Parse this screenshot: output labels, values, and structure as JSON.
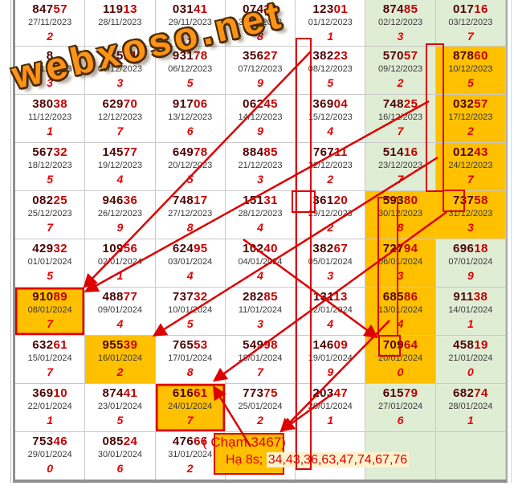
{
  "watermark": {
    "text": "webxoso.net"
  },
  "annotation": {
    "cham": "( Chạm 3467)",
    "ha_label": "Hạ 8s; ",
    "ha_numbers": "34,43,36,63,47,74,67,76"
  },
  "colors": {
    "highlight_orange": "#ffc000",
    "highlight_green": "#e0edd5",
    "annotation_red": "#dd0000",
    "number_dark": "#4d0505",
    "number_tail_red": "#c40000",
    "digit_red": "#e60000"
  },
  "table": {
    "columns": 7,
    "rows": [
      [
        {
          "n": "84757",
          "d": "27/11/2023",
          "g": "2",
          "bg": "w"
        },
        {
          "n": "11913",
          "d": "28/11/2023",
          "g": "",
          "bg": "w"
        },
        {
          "n": "03141",
          "d": "29/11/2023",
          "g": "5",
          "bg": "w"
        },
        {
          "n": "07426",
          "d": "30/11/2023",
          "g": "8",
          "bg": "w"
        },
        {
          "n": "12301",
          "d": "01/12/2023",
          "g": "1",
          "bg": "w"
        },
        {
          "n": "87485",
          "d": "02/12/2023",
          "g": "3",
          "bg": "g"
        },
        {
          "n": "01716",
          "d": "03/12/2023",
          "g": "7",
          "bg": "g"
        }
      ],
      [
        {
          "n": "8",
          "d": "04/12/2023",
          "g": "3",
          "bg": "w"
        },
        {
          "n": "47521",
          "d": "05/12/2023",
          "g": "3",
          "bg": "w"
        },
        {
          "n": "93178",
          "d": "06/12/2023",
          "g": "5",
          "bg": "w"
        },
        {
          "n": "35627",
          "d": "07/12/2023",
          "g": "9",
          "bg": "w"
        },
        {
          "n": "38223",
          "d": "08/12/2023",
          "g": "5",
          "bg": "w"
        },
        {
          "n": "57057",
          "d": "09/12/2023",
          "g": "2",
          "bg": "g"
        },
        {
          "n": "87860",
          "d": "10/12/2023",
          "g": "5",
          "bg": "o"
        }
      ],
      [
        {
          "n": "38038",
          "d": "11/12/2023",
          "g": "1",
          "bg": "w"
        },
        {
          "n": "62970",
          "d": "12/12/2023",
          "g": "7",
          "bg": "w"
        },
        {
          "n": "91706",
          "d": "13/12/2023",
          "g": "6",
          "bg": "w"
        },
        {
          "n": "06245",
          "d": "14/12/2023",
          "g": "9",
          "bg": "w"
        },
        {
          "n": "36904",
          "d": "15/12/2023",
          "g": "4",
          "bg": "w"
        },
        {
          "n": "74825",
          "d": "16/12/2023",
          "g": "7",
          "bg": "g"
        },
        {
          "n": "03257",
          "d": "17/12/2023",
          "g": "2",
          "bg": "o"
        }
      ],
      [
        {
          "n": "56732",
          "d": "18/12/2023",
          "g": "5",
          "bg": "w"
        },
        {
          "n": "14577",
          "d": "19/12/2023",
          "g": "4",
          "bg": "w"
        },
        {
          "n": "64978",
          "d": "20/12/2023",
          "g": "5",
          "bg": "w"
        },
        {
          "n": "88485",
          "d": "21/12/2023",
          "g": "3",
          "bg": "w"
        },
        {
          "n": "76711",
          "d": "22/12/2023",
          "g": "2",
          "bg": "w"
        },
        {
          "n": "51416",
          "d": "23/12/2023",
          "g": "7",
          "bg": "g"
        },
        {
          "n": "01243",
          "d": "24/12/2023",
          "g": "7",
          "bg": "o"
        }
      ],
      [
        {
          "n": "08225",
          "d": "25/12/2023",
          "g": "7",
          "bg": "w"
        },
        {
          "n": "94636",
          "d": "26/12/2023",
          "g": "9",
          "bg": "w"
        },
        {
          "n": "74817",
          "d": "27/12/2023",
          "g": "8",
          "bg": "w"
        },
        {
          "n": "15131",
          "d": "28/12/2023",
          "g": "4",
          "bg": "w"
        },
        {
          "n": "36120",
          "d": "29/12/2023",
          "g": "2",
          "bg": "w"
        },
        {
          "n": "59380",
          "d": "30/12/2023",
          "g": "8",
          "bg": "o"
        },
        {
          "n": "73758",
          "d": "31/12/2023",
          "g": "3",
          "bg": "o"
        }
      ],
      [
        {
          "n": "42932",
          "d": "01/01/2024",
          "g": "5",
          "bg": "w"
        },
        {
          "n": "10956",
          "d": "02/01/2024",
          "g": "1",
          "bg": "w"
        },
        {
          "n": "62495",
          "d": "03/01/2024",
          "g": "4",
          "bg": "w"
        },
        {
          "n": "10240",
          "d": "04/01/2024",
          "g": "4",
          "bg": "w"
        },
        {
          "n": "38267",
          "d": "05/01/2024",
          "g": "3",
          "bg": "w"
        },
        {
          "n": "72794",
          "d": "06/01/2024",
          "g": "3",
          "bg": "o"
        },
        {
          "n": "69618",
          "d": "07/01/2024",
          "g": "9",
          "bg": "g"
        }
      ],
      [
        {
          "n": "91089",
          "d": "08/01/2024",
          "g": "7",
          "bg": "o",
          "rb": true
        },
        {
          "n": "48877",
          "d": "09/01/2024",
          "g": "4",
          "bg": "w"
        },
        {
          "n": "73732",
          "d": "10/01/2024",
          "g": "5",
          "bg": "w"
        },
        {
          "n": "28285",
          "d": "11/01/2024",
          "g": "3",
          "bg": "w"
        },
        {
          "n": "13113",
          "d": "12/01/2024",
          "g": "4",
          "bg": "w"
        },
        {
          "n": "68586",
          "d": "13/01/2024",
          "g": "4",
          "bg": "o"
        },
        {
          "n": "91138",
          "d": "14/01/2024",
          "g": "1",
          "bg": "g"
        }
      ],
      [
        {
          "n": "63261",
          "d": "15/01/2024",
          "g": "7",
          "bg": "w"
        },
        {
          "n": "95539",
          "d": "16/01/2024",
          "g": "2",
          "bg": "o"
        },
        {
          "n": "76553",
          "d": "17/01/2024",
          "g": "8",
          "bg": "w"
        },
        {
          "n": "54998",
          "d": "18/01/2024",
          "g": "7",
          "bg": "w"
        },
        {
          "n": "14609",
          "d": "19/01/2024",
          "g": "9",
          "bg": "w"
        },
        {
          "n": "70964",
          "d": "20/01/2024",
          "g": "0",
          "bg": "o"
        },
        {
          "n": "45819",
          "d": "21/01/2024",
          "g": "0",
          "bg": "g"
        }
      ],
      [
        {
          "n": "36910",
          "d": "22/01/2024",
          "g": "1",
          "bg": "w"
        },
        {
          "n": "87441",
          "d": "23/01/2024",
          "g": "5",
          "bg": "w"
        },
        {
          "n": "61661",
          "d": "24/01/2024",
          "g": "7",
          "bg": "o",
          "rb": true
        },
        {
          "n": "77375",
          "d": "25/01/2024",
          "g": "2",
          "bg": "w"
        },
        {
          "n": "20347",
          "d": "26/01/2024",
          "g": "1",
          "bg": "w"
        },
        {
          "n": "61579",
          "d": "27/01/2024",
          "g": "6",
          "bg": "g"
        },
        {
          "n": "68274",
          "d": "28/01/2024",
          "g": "1",
          "bg": "g"
        }
      ],
      [
        {
          "n": "75346",
          "d": "29/01/2024",
          "g": "0",
          "bg": "w"
        },
        {
          "n": "08524",
          "d": "30/01/2024",
          "g": "6",
          "bg": "w"
        },
        {
          "n": "47666",
          "d": "31/01/2024",
          "g": "2",
          "bg": "w"
        },
        {
          "type": "anno",
          "bg": "w"
        },
        {
          "type": "empty",
          "bg": "w"
        },
        {
          "type": "empty",
          "bg": "g"
        },
        {
          "type": "empty",
          "bg": "g"
        }
      ]
    ]
  }
}
